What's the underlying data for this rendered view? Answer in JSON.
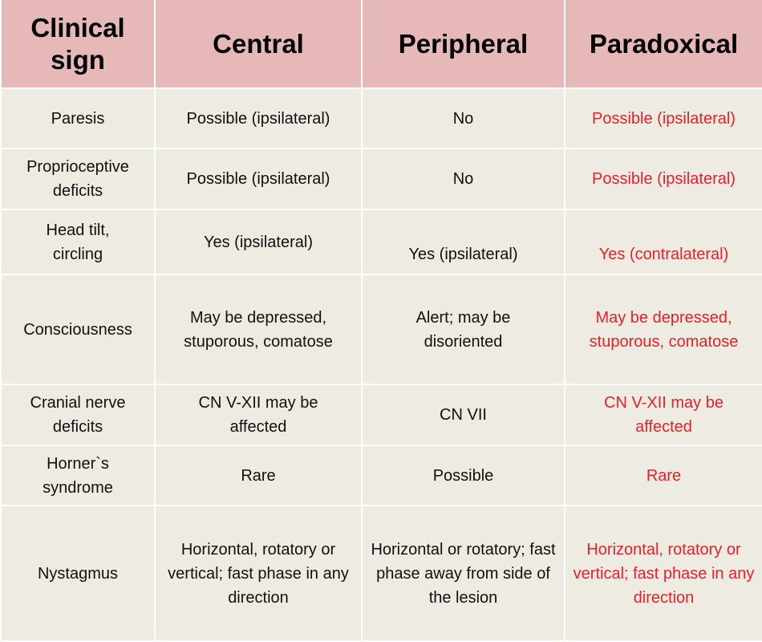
{
  "colors": {
    "header_bg": "#e6b8b8",
    "body_bg": "#eeebe2",
    "highlight_text": "#e8202a"
  },
  "headers": [
    "Clinical sign",
    "Central",
    "Peripheral",
    "Paradoxical"
  ],
  "rows": [
    {
      "sign": "Paresis",
      "central": "Possible (ipsilateral)",
      "peripheral": "No",
      "paradoxical": "Possible (ipsilateral)"
    },
    {
      "sign": "Proprioceptive deficits",
      "central": "Possible (ipsilateral)",
      "peripheral": "No",
      "paradoxical": "Possible (ipsilateral)"
    },
    {
      "sign": "Head tilt, circling",
      "central": "Yes (ipsilateral)",
      "peripheral": "Yes (ipsilateral)",
      "paradoxical": "Yes (contralateral)"
    },
    {
      "sign": "Consciousness",
      "central": "May be depressed, stuporous, comatose",
      "peripheral": "Alert; may be disoriented",
      "paradoxical": "May be depressed, stuporous, comatose"
    },
    {
      "sign": "Cranial nerve deficits",
      "central": "CN V-XII may be affected",
      "peripheral": "CN VII",
      "paradoxical": "CN V-XII may be affected"
    },
    {
      "sign": "Horner`s syndrome",
      "central": "Rare",
      "peripheral": "Possible",
      "paradoxical": "Rare"
    },
    {
      "sign": "Nystagmus",
      "central": "Horizontal, rotatory or vertical; fast phase in any direction",
      "peripheral": "Horizontal or rotatory; fast phase away from side of the lesion",
      "paradoxical": "Horizontal, rotatory or vertical; fast phase in any direction"
    }
  ]
}
